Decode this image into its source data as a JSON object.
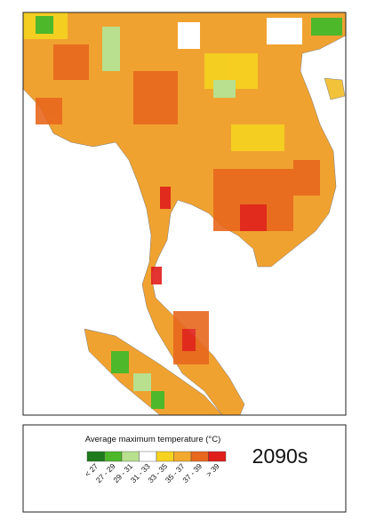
{
  "legend": {
    "title": "Average maximum temperature (°C)",
    "items": [
      {
        "label": "< 27",
        "color": "#1d7a1d"
      },
      {
        "label": "27 - 29",
        "color": "#4cb82a"
      },
      {
        "label": "29 - 31",
        "color": "#b8e08e"
      },
      {
        "label": "31 - 33",
        "color": "#ffffff"
      },
      {
        "label": "33 - 35",
        "color": "#f5d320"
      },
      {
        "label": "35 - 37",
        "color": "#f2a92e"
      },
      {
        "label": "37 - 39",
        "color": "#e8681e"
      },
      {
        "label": "> 39",
        "color": "#e01f1b"
      }
    ]
  },
  "period": "2090s"
}
